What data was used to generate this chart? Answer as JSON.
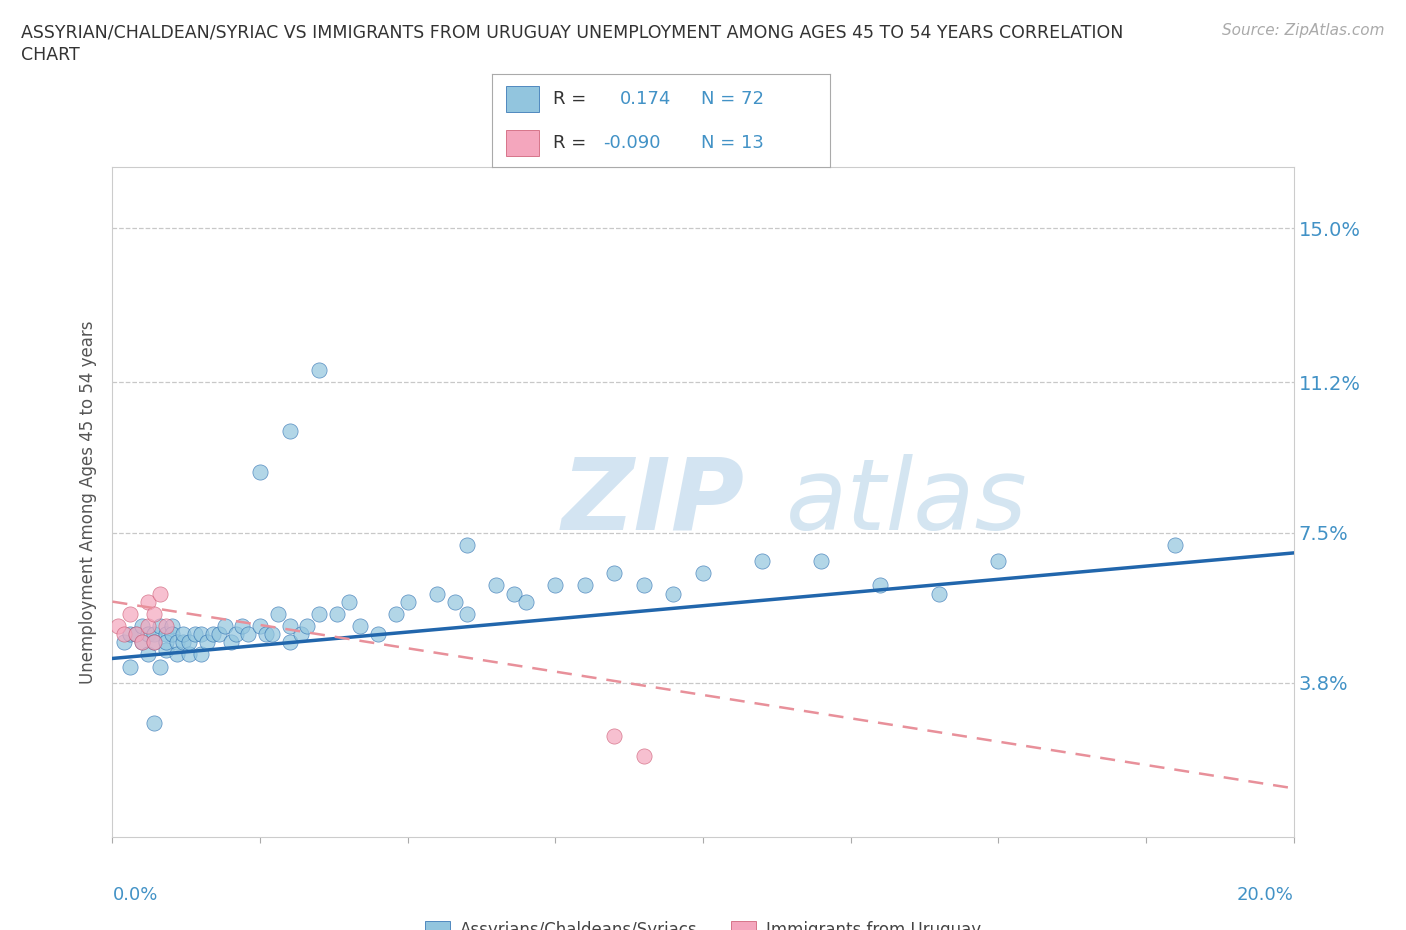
{
  "title_line1": "ASSYRIAN/CHALDEAN/SYRIAC VS IMMIGRANTS FROM URUGUAY UNEMPLOYMENT AMONG AGES 45 TO 54 YEARS CORRELATION",
  "title_line2": "CHART",
  "source_text": "Source: ZipAtlas.com",
  "ylabel": "Unemployment Among Ages 45 to 54 years",
  "ytick_labels": [
    "3.8%",
    "7.5%",
    "11.2%",
    "15.0%"
  ],
  "ytick_vals": [
    0.038,
    0.075,
    0.112,
    0.15
  ],
  "xmin": 0.0,
  "xmax": 0.2,
  "ymin": 0.0,
  "ymax": 0.165,
  "color_blue": "#92c5de",
  "color_pink": "#f4a6bd",
  "color_blue_line": "#2166ac",
  "color_pink_line": "#d6604d",
  "watermark_zip": "ZIP",
  "watermark_atlas": "atlas",
  "blue_x": [
    0.002,
    0.003,
    0.003,
    0.004,
    0.005,
    0.005,
    0.006,
    0.006,
    0.007,
    0.007,
    0.008,
    0.008,
    0.009,
    0.009,
    0.009,
    0.01,
    0.01,
    0.011,
    0.011,
    0.012,
    0.012,
    0.013,
    0.013,
    0.014,
    0.015,
    0.015,
    0.016,
    0.017,
    0.018,
    0.019,
    0.02,
    0.021,
    0.022,
    0.023,
    0.025,
    0.026,
    0.027,
    0.028,
    0.03,
    0.03,
    0.032,
    0.033,
    0.035,
    0.038,
    0.04,
    0.042,
    0.045,
    0.048,
    0.05,
    0.055,
    0.058,
    0.06,
    0.065,
    0.068,
    0.07,
    0.075,
    0.08,
    0.085,
    0.09,
    0.095,
    0.1,
    0.11,
    0.12,
    0.13,
    0.14,
    0.15,
    0.025,
    0.03,
    0.035,
    0.06,
    0.18,
    0.007
  ],
  "blue_y": [
    0.048,
    0.042,
    0.05,
    0.05,
    0.048,
    0.052,
    0.05,
    0.045,
    0.05,
    0.048,
    0.052,
    0.042,
    0.046,
    0.05,
    0.048,
    0.052,
    0.05,
    0.048,
    0.045,
    0.048,
    0.05,
    0.045,
    0.048,
    0.05,
    0.05,
    0.045,
    0.048,
    0.05,
    0.05,
    0.052,
    0.048,
    0.05,
    0.052,
    0.05,
    0.052,
    0.05,
    0.05,
    0.055,
    0.052,
    0.048,
    0.05,
    0.052,
    0.055,
    0.055,
    0.058,
    0.052,
    0.05,
    0.055,
    0.058,
    0.06,
    0.058,
    0.055,
    0.062,
    0.06,
    0.058,
    0.062,
    0.062,
    0.065,
    0.062,
    0.06,
    0.065,
    0.068,
    0.068,
    0.062,
    0.06,
    0.068,
    0.09,
    0.1,
    0.115,
    0.072,
    0.072,
    0.028
  ],
  "pink_x": [
    0.001,
    0.002,
    0.003,
    0.004,
    0.005,
    0.006,
    0.006,
    0.007,
    0.007,
    0.008,
    0.009,
    0.085,
    0.09
  ],
  "pink_y": [
    0.052,
    0.05,
    0.055,
    0.05,
    0.048,
    0.052,
    0.058,
    0.055,
    0.048,
    0.06,
    0.052,
    0.025,
    0.02
  ],
  "blue_line_x0": 0.0,
  "blue_line_x1": 0.2,
  "blue_line_y0": 0.044,
  "blue_line_y1": 0.07,
  "pink_line_x0": 0.0,
  "pink_line_x1": 0.2,
  "pink_line_y0": 0.058,
  "pink_line_y1": 0.012
}
